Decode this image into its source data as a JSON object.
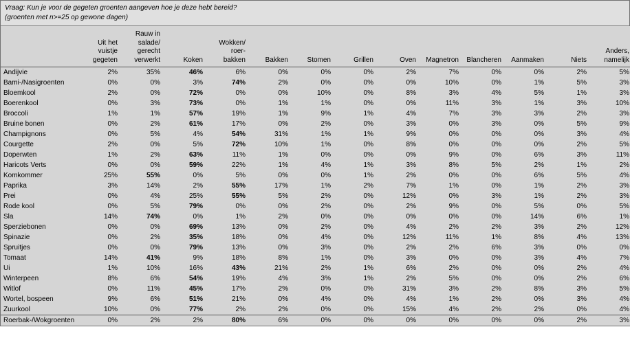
{
  "styling": {
    "font_family": "Verdana, Arial, sans-serif",
    "base_font_size_pt": 8,
    "header_bg": "#e0e0e0",
    "table_bg": "#d5d5d5",
    "border_color": "#707070",
    "row_separator_color": "#555555",
    "text_color": "#000000",
    "bold_max_row": true
  },
  "question_line": "Vraag: Kun je voor de gegeten groenten aangeven hoe je deze hebt bereid?",
  "subtitle_line": "(groenten met n>=25 op gewone dagen)",
  "columns": [
    {
      "key": "uit_vuistje",
      "label": "Uit het\nvuistje\ngegeten"
    },
    {
      "key": "rauw_salade",
      "label": "Rauw in\nsalade/\ngerecht\nverwerkt"
    },
    {
      "key": "koken",
      "label": "Koken"
    },
    {
      "key": "wokken",
      "label": "Wokken/\nroer-\nbakken"
    },
    {
      "key": "bakken",
      "label": "Bakken"
    },
    {
      "key": "stomen",
      "label": "Stomen"
    },
    {
      "key": "grillen",
      "label": "Grillen"
    },
    {
      "key": "oven",
      "label": "Oven"
    },
    {
      "key": "magnetron",
      "label": "Magnetron"
    },
    {
      "key": "blancheren",
      "label": "Blancheren"
    },
    {
      "key": "aanmaken",
      "label": "Aanmaken"
    },
    {
      "key": "niets",
      "label": "Niets"
    },
    {
      "key": "anders",
      "label": "Anders,\nnamelijk"
    }
  ],
  "rows": [
    {
      "label": "Andijvie",
      "vals": [
        "2%",
        "35%",
        "46%",
        "6%",
        "0%",
        "0%",
        "0%",
        "2%",
        "7%",
        "0%",
        "0%",
        "2%",
        "5%"
      ]
    },
    {
      "label": "Bami-/Nasigroenten",
      "vals": [
        "0%",
        "0%",
        "3%",
        "74%",
        "2%",
        "0%",
        "0%",
        "0%",
        "10%",
        "0%",
        "1%",
        "5%",
        "3%"
      ]
    },
    {
      "label": "Bloemkool",
      "vals": [
        "2%",
        "0%",
        "72%",
        "0%",
        "0%",
        "10%",
        "0%",
        "8%",
        "3%",
        "4%",
        "5%",
        "1%",
        "3%"
      ]
    },
    {
      "label": "Boerenkool",
      "vals": [
        "0%",
        "3%",
        "73%",
        "0%",
        "1%",
        "1%",
        "0%",
        "0%",
        "11%",
        "3%",
        "1%",
        "3%",
        "10%"
      ]
    },
    {
      "label": "Broccoli",
      "vals": [
        "1%",
        "1%",
        "57%",
        "19%",
        "1%",
        "9%",
        "1%",
        "4%",
        "7%",
        "3%",
        "3%",
        "2%",
        "3%"
      ]
    },
    {
      "label": "Bruine bonen",
      "vals": [
        "0%",
        "2%",
        "61%",
        "17%",
        "0%",
        "2%",
        "0%",
        "3%",
        "0%",
        "3%",
        "0%",
        "5%",
        "9%"
      ]
    },
    {
      "label": "Champignons",
      "vals": [
        "0%",
        "5%",
        "4%",
        "54%",
        "31%",
        "1%",
        "1%",
        "9%",
        "0%",
        "0%",
        "0%",
        "3%",
        "4%"
      ]
    },
    {
      "label": "Courgette",
      "vals": [
        "2%",
        "0%",
        "5%",
        "72%",
        "10%",
        "1%",
        "0%",
        "8%",
        "0%",
        "0%",
        "0%",
        "2%",
        "5%"
      ]
    },
    {
      "label": "Doperwten",
      "vals": [
        "1%",
        "2%",
        "63%",
        "11%",
        "1%",
        "0%",
        "0%",
        "0%",
        "9%",
        "0%",
        "6%",
        "3%",
        "11%"
      ]
    },
    {
      "label": "Haricots Verts",
      "vals": [
        "0%",
        "0%",
        "59%",
        "22%",
        "1%",
        "4%",
        "1%",
        "3%",
        "8%",
        "5%",
        "2%",
        "1%",
        "2%"
      ]
    },
    {
      "label": "Komkommer",
      "vals": [
        "25%",
        "55%",
        "0%",
        "5%",
        "0%",
        "0%",
        "1%",
        "2%",
        "0%",
        "0%",
        "6%",
        "5%",
        "4%"
      ]
    },
    {
      "label": "Paprika",
      "vals": [
        "3%",
        "14%",
        "2%",
        "55%",
        "17%",
        "1%",
        "2%",
        "7%",
        "1%",
        "0%",
        "1%",
        "2%",
        "3%"
      ]
    },
    {
      "label": "Prei",
      "vals": [
        "0%",
        "4%",
        "25%",
        "55%",
        "5%",
        "2%",
        "0%",
        "12%",
        "0%",
        "3%",
        "1%",
        "2%",
        "3%"
      ]
    },
    {
      "label": "Rode kool",
      "vals": [
        "0%",
        "5%",
        "79%",
        "0%",
        "0%",
        "2%",
        "0%",
        "2%",
        "9%",
        "0%",
        "5%",
        "0%",
        "5%"
      ]
    },
    {
      "label": "Sla",
      "vals": [
        "14%",
        "74%",
        "0%",
        "1%",
        "2%",
        "0%",
        "0%",
        "0%",
        "0%",
        "0%",
        "14%",
        "6%",
        "1%"
      ]
    },
    {
      "label": "Sperziebonen",
      "vals": [
        "0%",
        "0%",
        "69%",
        "13%",
        "0%",
        "2%",
        "0%",
        "4%",
        "2%",
        "2%",
        "3%",
        "2%",
        "12%"
      ]
    },
    {
      "label": "Spinazie",
      "vals": [
        "0%",
        "2%",
        "35%",
        "18%",
        "0%",
        "4%",
        "0%",
        "12%",
        "11%",
        "1%",
        "8%",
        "4%",
        "13%"
      ]
    },
    {
      "label": "Spruitjes",
      "vals": [
        "0%",
        "0%",
        "79%",
        "13%",
        "0%",
        "3%",
        "0%",
        "2%",
        "2%",
        "6%",
        "3%",
        "0%",
        "0%"
      ]
    },
    {
      "label": "Tomaat",
      "vals": [
        "14%",
        "41%",
        "9%",
        "18%",
        "8%",
        "1%",
        "0%",
        "3%",
        "0%",
        "0%",
        "3%",
        "4%",
        "7%"
      ]
    },
    {
      "label": "Ui",
      "vals": [
        "1%",
        "10%",
        "16%",
        "43%",
        "21%",
        "2%",
        "1%",
        "6%",
        "2%",
        "0%",
        "0%",
        "2%",
        "4%"
      ]
    },
    {
      "label": "Winterpeen",
      "vals": [
        "8%",
        "6%",
        "54%",
        "19%",
        "4%",
        "3%",
        "1%",
        "2%",
        "5%",
        "0%",
        "0%",
        "2%",
        "6%"
      ]
    },
    {
      "label": "Witlof",
      "vals": [
        "0%",
        "11%",
        "45%",
        "17%",
        "2%",
        "0%",
        "0%",
        "31%",
        "3%",
        "2%",
        "8%",
        "3%",
        "5%"
      ]
    },
    {
      "label": "Wortel, bospeen",
      "vals": [
        "9%",
        "6%",
        "51%",
        "21%",
        "0%",
        "4%",
        "0%",
        "4%",
        "1%",
        "2%",
        "0%",
        "3%",
        "4%"
      ]
    },
    {
      "label": "Zuurkool",
      "vals": [
        "10%",
        "0%",
        "77%",
        "2%",
        "2%",
        "0%",
        "0%",
        "15%",
        "4%",
        "2%",
        "2%",
        "0%",
        "4%"
      ]
    },
    {
      "label": "Roerbak-/Wokgroenten",
      "vals": [
        "0%",
        "2%",
        "2%",
        "80%",
        "6%",
        "0%",
        "0%",
        "0%",
        "0%",
        "0%",
        "0%",
        "2%",
        "3%"
      ],
      "separator": true
    }
  ]
}
